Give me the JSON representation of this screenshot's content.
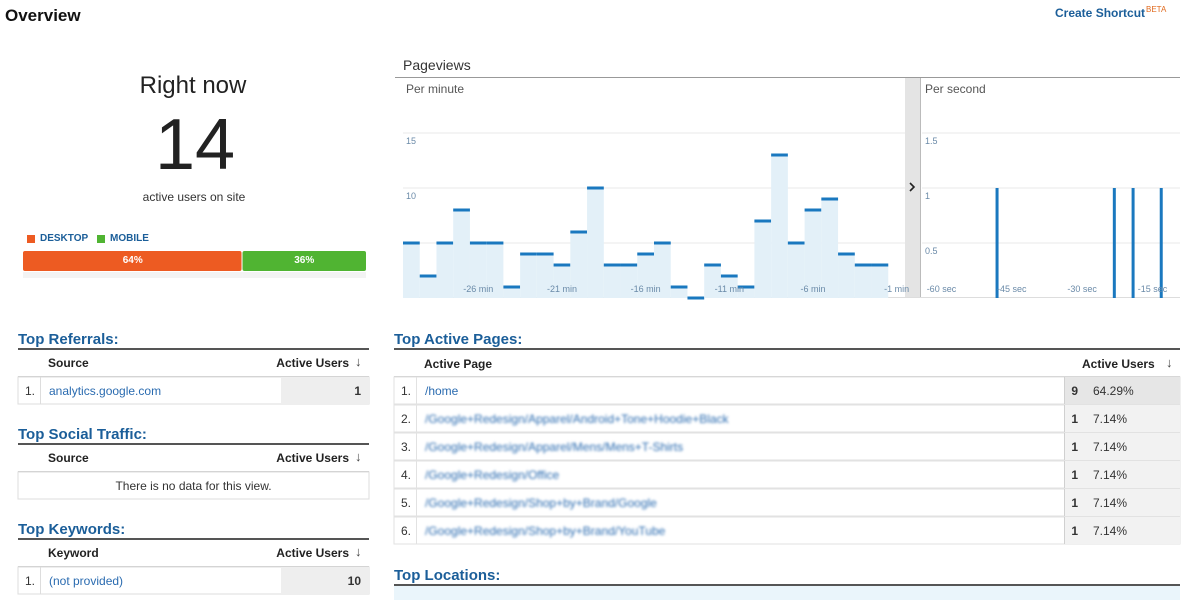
{
  "header": {
    "title": "Overview",
    "shortcut": "Create Shortcut",
    "badge": "BETA"
  },
  "right_now": {
    "title": "Right now",
    "active_users": 14,
    "caption": "active users on site",
    "devices": [
      {
        "name": "DESKTOP",
        "color": "#ed5b22",
        "value": 64,
        "label": "64%"
      },
      {
        "name": "MOBILE",
        "color": "#50b432",
        "value": 36,
        "label": "36%"
      }
    ]
  },
  "pageviews": {
    "title": "Pageviews",
    "per_minute": {
      "type": "bar",
      "subtitle": "Per minute",
      "color": "#1a78bf",
      "grid": true,
      "xlim": [
        -30,
        0
      ],
      "xticks": [
        {
          "value": -26,
          "label": "-26 min"
        },
        {
          "value": -21,
          "label": "-21 min"
        },
        {
          "value": -16,
          "label": "-16 min"
        },
        {
          "value": -11,
          "label": "-11 min"
        },
        {
          "value": -6,
          "label": "-6 min"
        },
        {
          "value": -1,
          "label": "-1 min"
        }
      ],
      "ylim": [
        0,
        18
      ],
      "yticks": [
        5,
        10,
        15
      ],
      "values": [
        5,
        2,
        5,
        8,
        5,
        5,
        1,
        4,
        4,
        3,
        6,
        10,
        3,
        3,
        4,
        5,
        1,
        0,
        3,
        2,
        1,
        7,
        13,
        5,
        8,
        9,
        4,
        3,
        3,
        null
      ]
    },
    "per_second": {
      "type": "bar",
      "subtitle": "Per second",
      "color": "#1a78bf",
      "grid": true,
      "xlim": [
        -61,
        -6
      ],
      "xticks": [
        {
          "value": -60,
          "label": "-60 sec"
        },
        {
          "value": -45,
          "label": "-45 sec"
        },
        {
          "value": -30,
          "label": "-30 sec"
        },
        {
          "value": -15,
          "label": "-15 sec"
        }
      ],
      "ylim": [
        0,
        1.8
      ],
      "yticks": [
        0.5,
        1,
        1.5
      ],
      "x": [
        -45,
        -20,
        -16,
        -10
      ],
      "values": [
        1,
        1,
        1,
        1
      ]
    }
  },
  "top_referrals": {
    "title": "Top Referrals:",
    "columns": [
      "Source",
      "Active Users"
    ],
    "rows": [
      [
        "1.",
        "analytics.google.com",
        1
      ]
    ]
  },
  "top_social_traffic": {
    "title": "Top Social Traffic:",
    "columns": [
      "Source",
      "Active Users"
    ],
    "empty_message": "There is no data for this view."
  },
  "top_keywords": {
    "title": "Top Keywords:",
    "columns": [
      "Keyword",
      "Active Users"
    ],
    "rows": [
      [
        "1.",
        "(not provided)",
        10
      ]
    ]
  },
  "top_active_pages": {
    "title": "Top Active Pages:",
    "columns": [
      "Active Page",
      "Active Users"
    ],
    "rows": [
      [
        "1.",
        "/home",
        9,
        "64.29%"
      ],
      [
        "2.",
        "/Google+Redesign/Apparel/Android+Tone+Hoodie+Black",
        1,
        "7.14%"
      ],
      [
        "3.",
        "/Google+Redesign/Apparel/Mens/Mens+T-Shirts",
        1,
        "7.14%"
      ],
      [
        "4.",
        "/Google+Redesign/Office",
        1,
        "7.14%"
      ],
      [
        "5.",
        "/Google+Redesign/Shop+by+Brand/Google",
        1,
        "7.14%"
      ],
      [
        "6.",
        "/Google+Redesign/Shop+by+Brand/YouTube",
        1,
        "7.14%"
      ]
    ]
  },
  "top_locations": {
    "title": "Top Locations:"
  }
}
